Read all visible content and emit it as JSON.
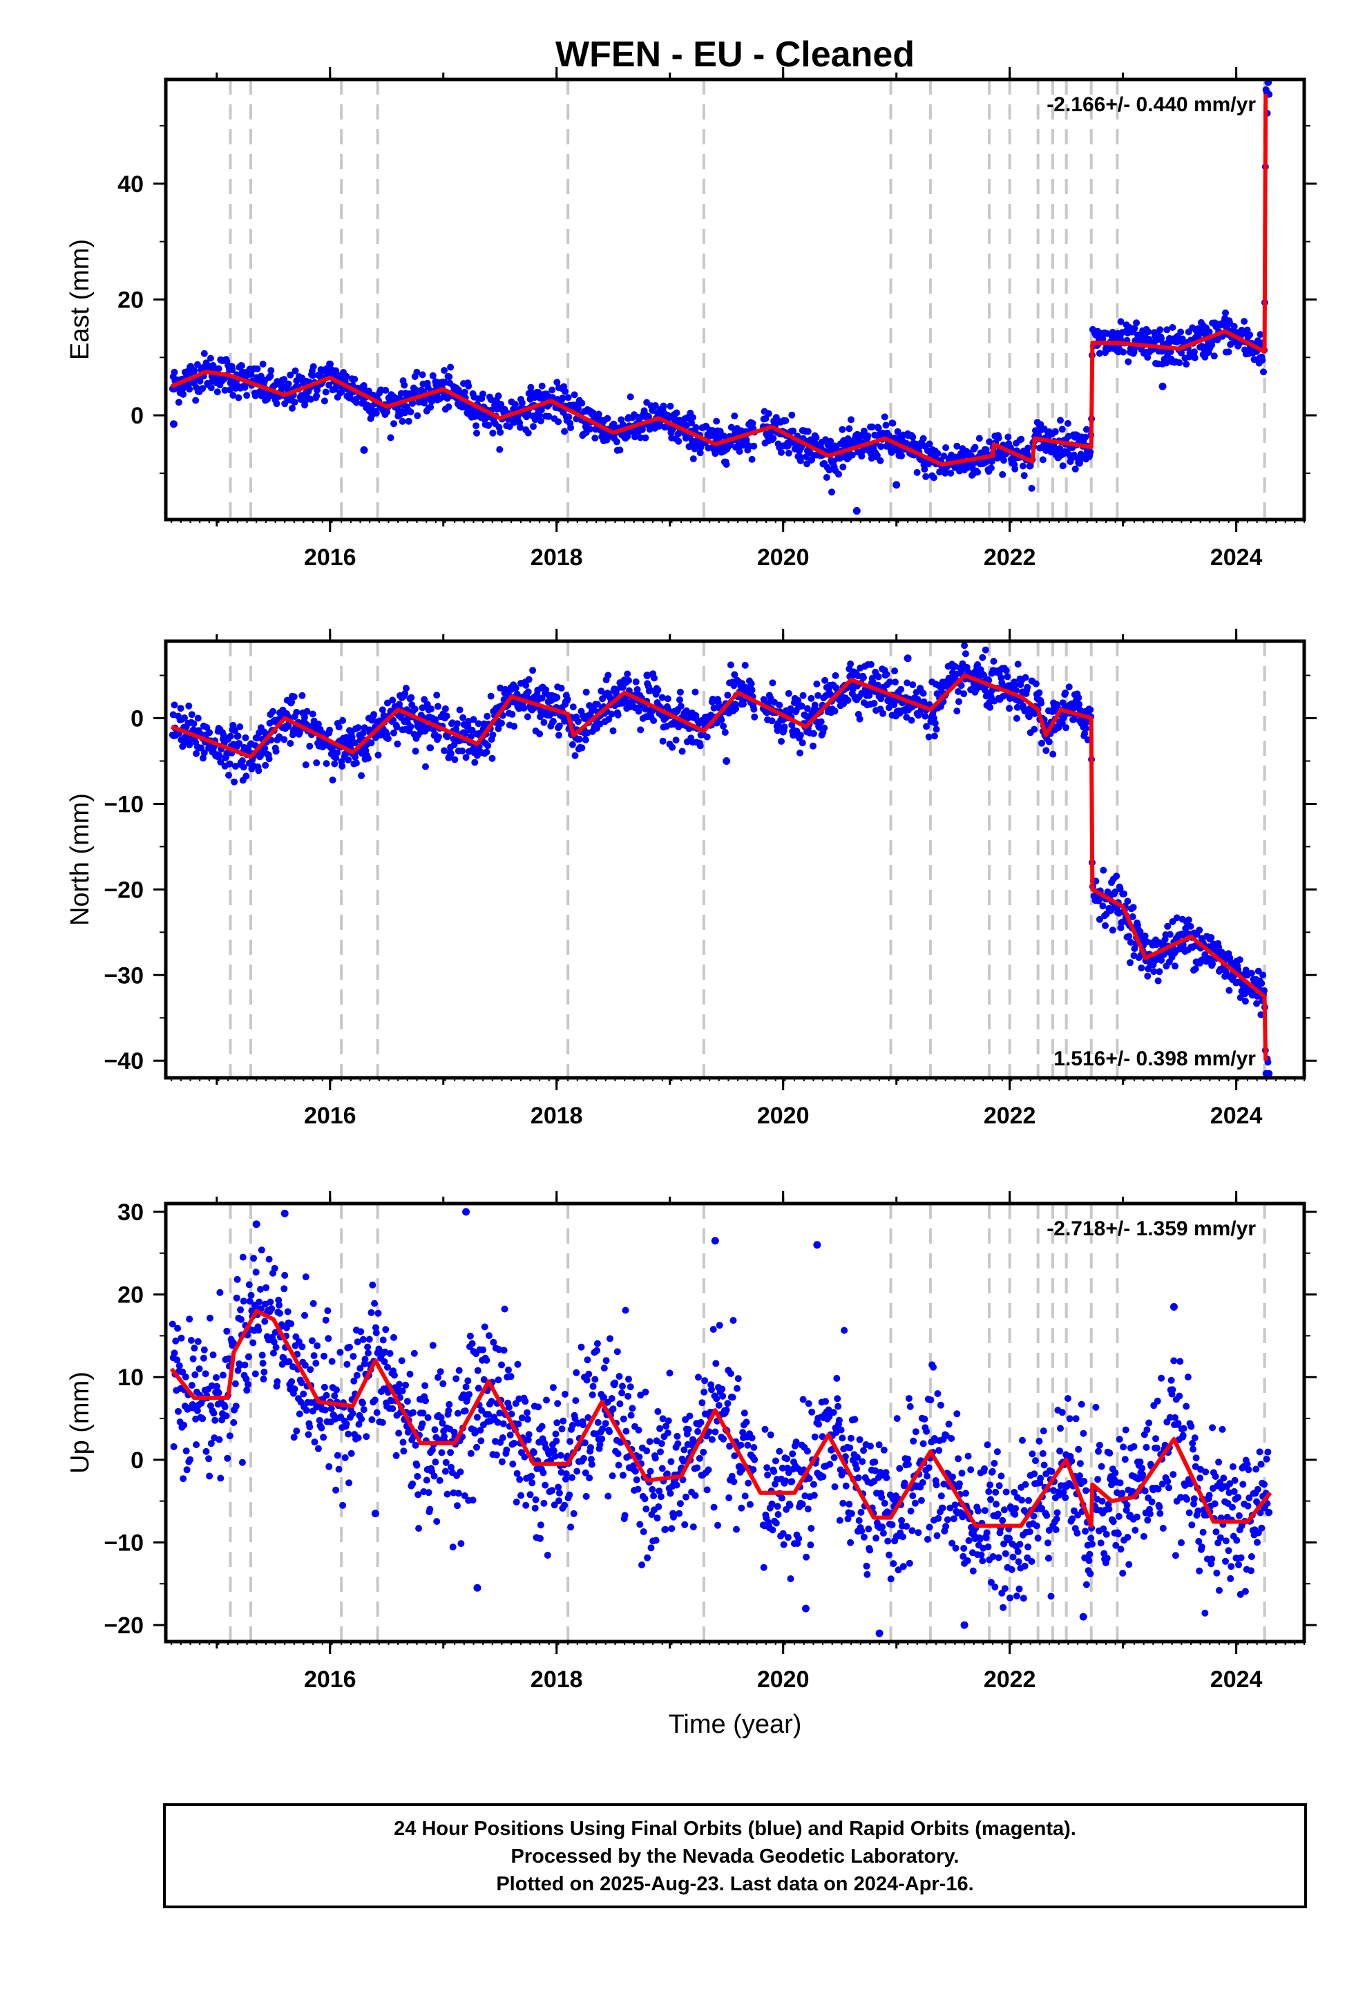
{
  "title": "WFEN  - EU - Cleaned",
  "xlabel": "Time (year)",
  "footer": [
    "24 Hour Positions Using Final Orbits (blue) and Rapid Orbits (magenta).",
    "Processed by the Nevada Geodetic Laboratory.",
    "Plotted on 2025-Aug-23. Last data on 2024-Apr-16."
  ],
  "colors": {
    "points": "#0000ff",
    "model": "#ff0000",
    "steps": "#c8c8c8",
    "frame": "#000000"
  },
  "chart_data": {
    "type": "scatter",
    "xlim": [
      2014.55,
      2024.6
    ],
    "x_ticks": [
      2016,
      2018,
      2020,
      2022,
      2024
    ],
    "step_dates": [
      2015.12,
      2015.3,
      2016.1,
      2016.42,
      2018.1,
      2019.3,
      2020.95,
      2021.3,
      2021.82,
      2022.0,
      2022.25,
      2022.38,
      2022.5,
      2022.72,
      2022.95,
      2024.25
    ],
    "panels": [
      {
        "name": "east",
        "ylabel": "East (mm)",
        "ylim": [
          -18,
          58
        ],
        "y_ticks": [
          0,
          20,
          40
        ],
        "rate_text": "-2.166+/- 0.440 mm/yr",
        "rate_position": "top-right",
        "noise": 1.6,
        "outliers": [
          [
            2014.62,
            -1.5
          ],
          [
            2016.3,
            -6
          ],
          [
            2020.65,
            -16.5
          ],
          [
            2021.0,
            -12
          ],
          [
            2023.35,
            5
          ]
        ],
        "model": [
          [
            2014.6,
            5
          ],
          [
            2014.9,
            7.5
          ],
          [
            2015.1,
            7.0
          ],
          [
            2015.6,
            3.5
          ],
          [
            2016.0,
            6.5
          ],
          [
            2016.5,
            1.5
          ],
          [
            2017.0,
            4.5
          ],
          [
            2017.5,
            -0.5
          ],
          [
            2017.95,
            2.5
          ],
          [
            2018.5,
            -3.0
          ],
          [
            2018.9,
            -0.5
          ],
          [
            2019.4,
            -5.0
          ],
          [
            2019.9,
            -2.0
          ],
          [
            2020.4,
            -7.0
          ],
          [
            2020.9,
            -4.0
          ],
          [
            2021.4,
            -8.5
          ],
          [
            2021.85,
            -7.0
          ],
          [
            2021.86,
            -5.0
          ],
          [
            2022.2,
            -8.0
          ],
          [
            2022.22,
            -4.0
          ],
          [
            2022.72,
            -5.5
          ],
          [
            2022.73,
            12.5
          ],
          [
            2022.95,
            12.5
          ],
          [
            2023.5,
            11.5
          ],
          [
            2023.9,
            14.5
          ],
          [
            2024.25,
            11.0
          ],
          [
            2024.26,
            55.5
          ]
        ]
      },
      {
        "name": "north",
        "ylabel": "North (mm)",
        "ylim": [
          -42,
          9
        ],
        "y_ticks": [
          -40,
          -30,
          -20,
          -10,
          0
        ],
        "rate_text": "1.516+/- 0.398 mm/yr",
        "rate_position": "bottom-right",
        "noise": 1.4,
        "outliers": [
          [
            2019.5,
            -5
          ],
          [
            2021.1,
            7
          ],
          [
            2018.8,
            5
          ]
        ],
        "model": [
          [
            2014.6,
            -1.0
          ],
          [
            2015.3,
            -4.5
          ],
          [
            2015.6,
            0.0
          ],
          [
            2016.2,
            -4.0
          ],
          [
            2016.6,
            1.0
          ],
          [
            2017.3,
            -3.0
          ],
          [
            2017.6,
            2.5
          ],
          [
            2018.1,
            0.5
          ],
          [
            2018.15,
            -2.0
          ],
          [
            2018.6,
            3.0
          ],
          [
            2019.3,
            -1.5
          ],
          [
            2019.6,
            3.0
          ],
          [
            2020.2,
            -1.0
          ],
          [
            2020.6,
            4.5
          ],
          [
            2021.3,
            1.0
          ],
          [
            2021.6,
            5.0
          ],
          [
            2022.1,
            2.5
          ],
          [
            2022.25,
            1.0
          ],
          [
            2022.32,
            -2.0
          ],
          [
            2022.45,
            1.0
          ],
          [
            2022.72,
            0.0
          ],
          [
            2022.73,
            -20.0
          ],
          [
            2023.0,
            -22.0
          ],
          [
            2023.2,
            -28.0
          ],
          [
            2023.6,
            -25.5
          ],
          [
            2024.25,
            -32.5
          ],
          [
            2024.26,
            -40.0
          ]
        ]
      },
      {
        "name": "up",
        "ylabel": "Up (mm)",
        "ylim": [
          -22,
          31
        ],
        "y_ticks": [
          -20,
          -10,
          0,
          10,
          20,
          30
        ],
        "rate_text": "-2.718+/- 1.359 mm/yr",
        "rate_position": "top-right",
        "noise": 4.5,
        "outliers": [
          [
            2015.35,
            28.5
          ],
          [
            2015.6,
            29.8
          ],
          [
            2017.2,
            30.0
          ],
          [
            2017.3,
            -15.5
          ],
          [
            2019.4,
            26.5
          ],
          [
            2020.3,
            26.0
          ],
          [
            2020.2,
            -18.0
          ],
          [
            2020.85,
            -21.0
          ],
          [
            2021.6,
            -20.0
          ],
          [
            2022.65,
            -19.0
          ],
          [
            2016.4,
            -6.5
          ],
          [
            2023.45,
            18.5
          ]
        ],
        "model": [
          [
            2014.6,
            11.0
          ],
          [
            2014.8,
            7.5
          ],
          [
            2015.1,
            7.5
          ],
          [
            2015.15,
            13.0
          ],
          [
            2015.35,
            18.0
          ],
          [
            2015.5,
            17.0
          ],
          [
            2015.9,
            7.0
          ],
          [
            2016.2,
            6.5
          ],
          [
            2016.4,
            12.0
          ],
          [
            2016.8,
            2.0
          ],
          [
            2017.1,
            2.0
          ],
          [
            2017.4,
            9.5
          ],
          [
            2017.8,
            -0.5
          ],
          [
            2018.1,
            -0.5
          ],
          [
            2018.4,
            7.0
          ],
          [
            2018.8,
            -2.5
          ],
          [
            2019.1,
            -2.0
          ],
          [
            2019.4,
            6.0
          ],
          [
            2019.8,
            -4.0
          ],
          [
            2020.1,
            -4.0
          ],
          [
            2020.4,
            3.0
          ],
          [
            2020.8,
            -7.0
          ],
          [
            2020.95,
            -7.0
          ],
          [
            2021.3,
            1.0
          ],
          [
            2021.7,
            -8.0
          ],
          [
            2022.1,
            -8.0
          ],
          [
            2022.5,
            0.0
          ],
          [
            2022.72,
            -8.0
          ],
          [
            2022.73,
            -3.0
          ],
          [
            2022.9,
            -5.0
          ],
          [
            2023.1,
            -4.5
          ],
          [
            2023.45,
            2.5
          ],
          [
            2023.8,
            -7.5
          ],
          [
            2024.1,
            -7.5
          ],
          [
            2024.3,
            -4.0
          ]
        ]
      }
    ]
  }
}
